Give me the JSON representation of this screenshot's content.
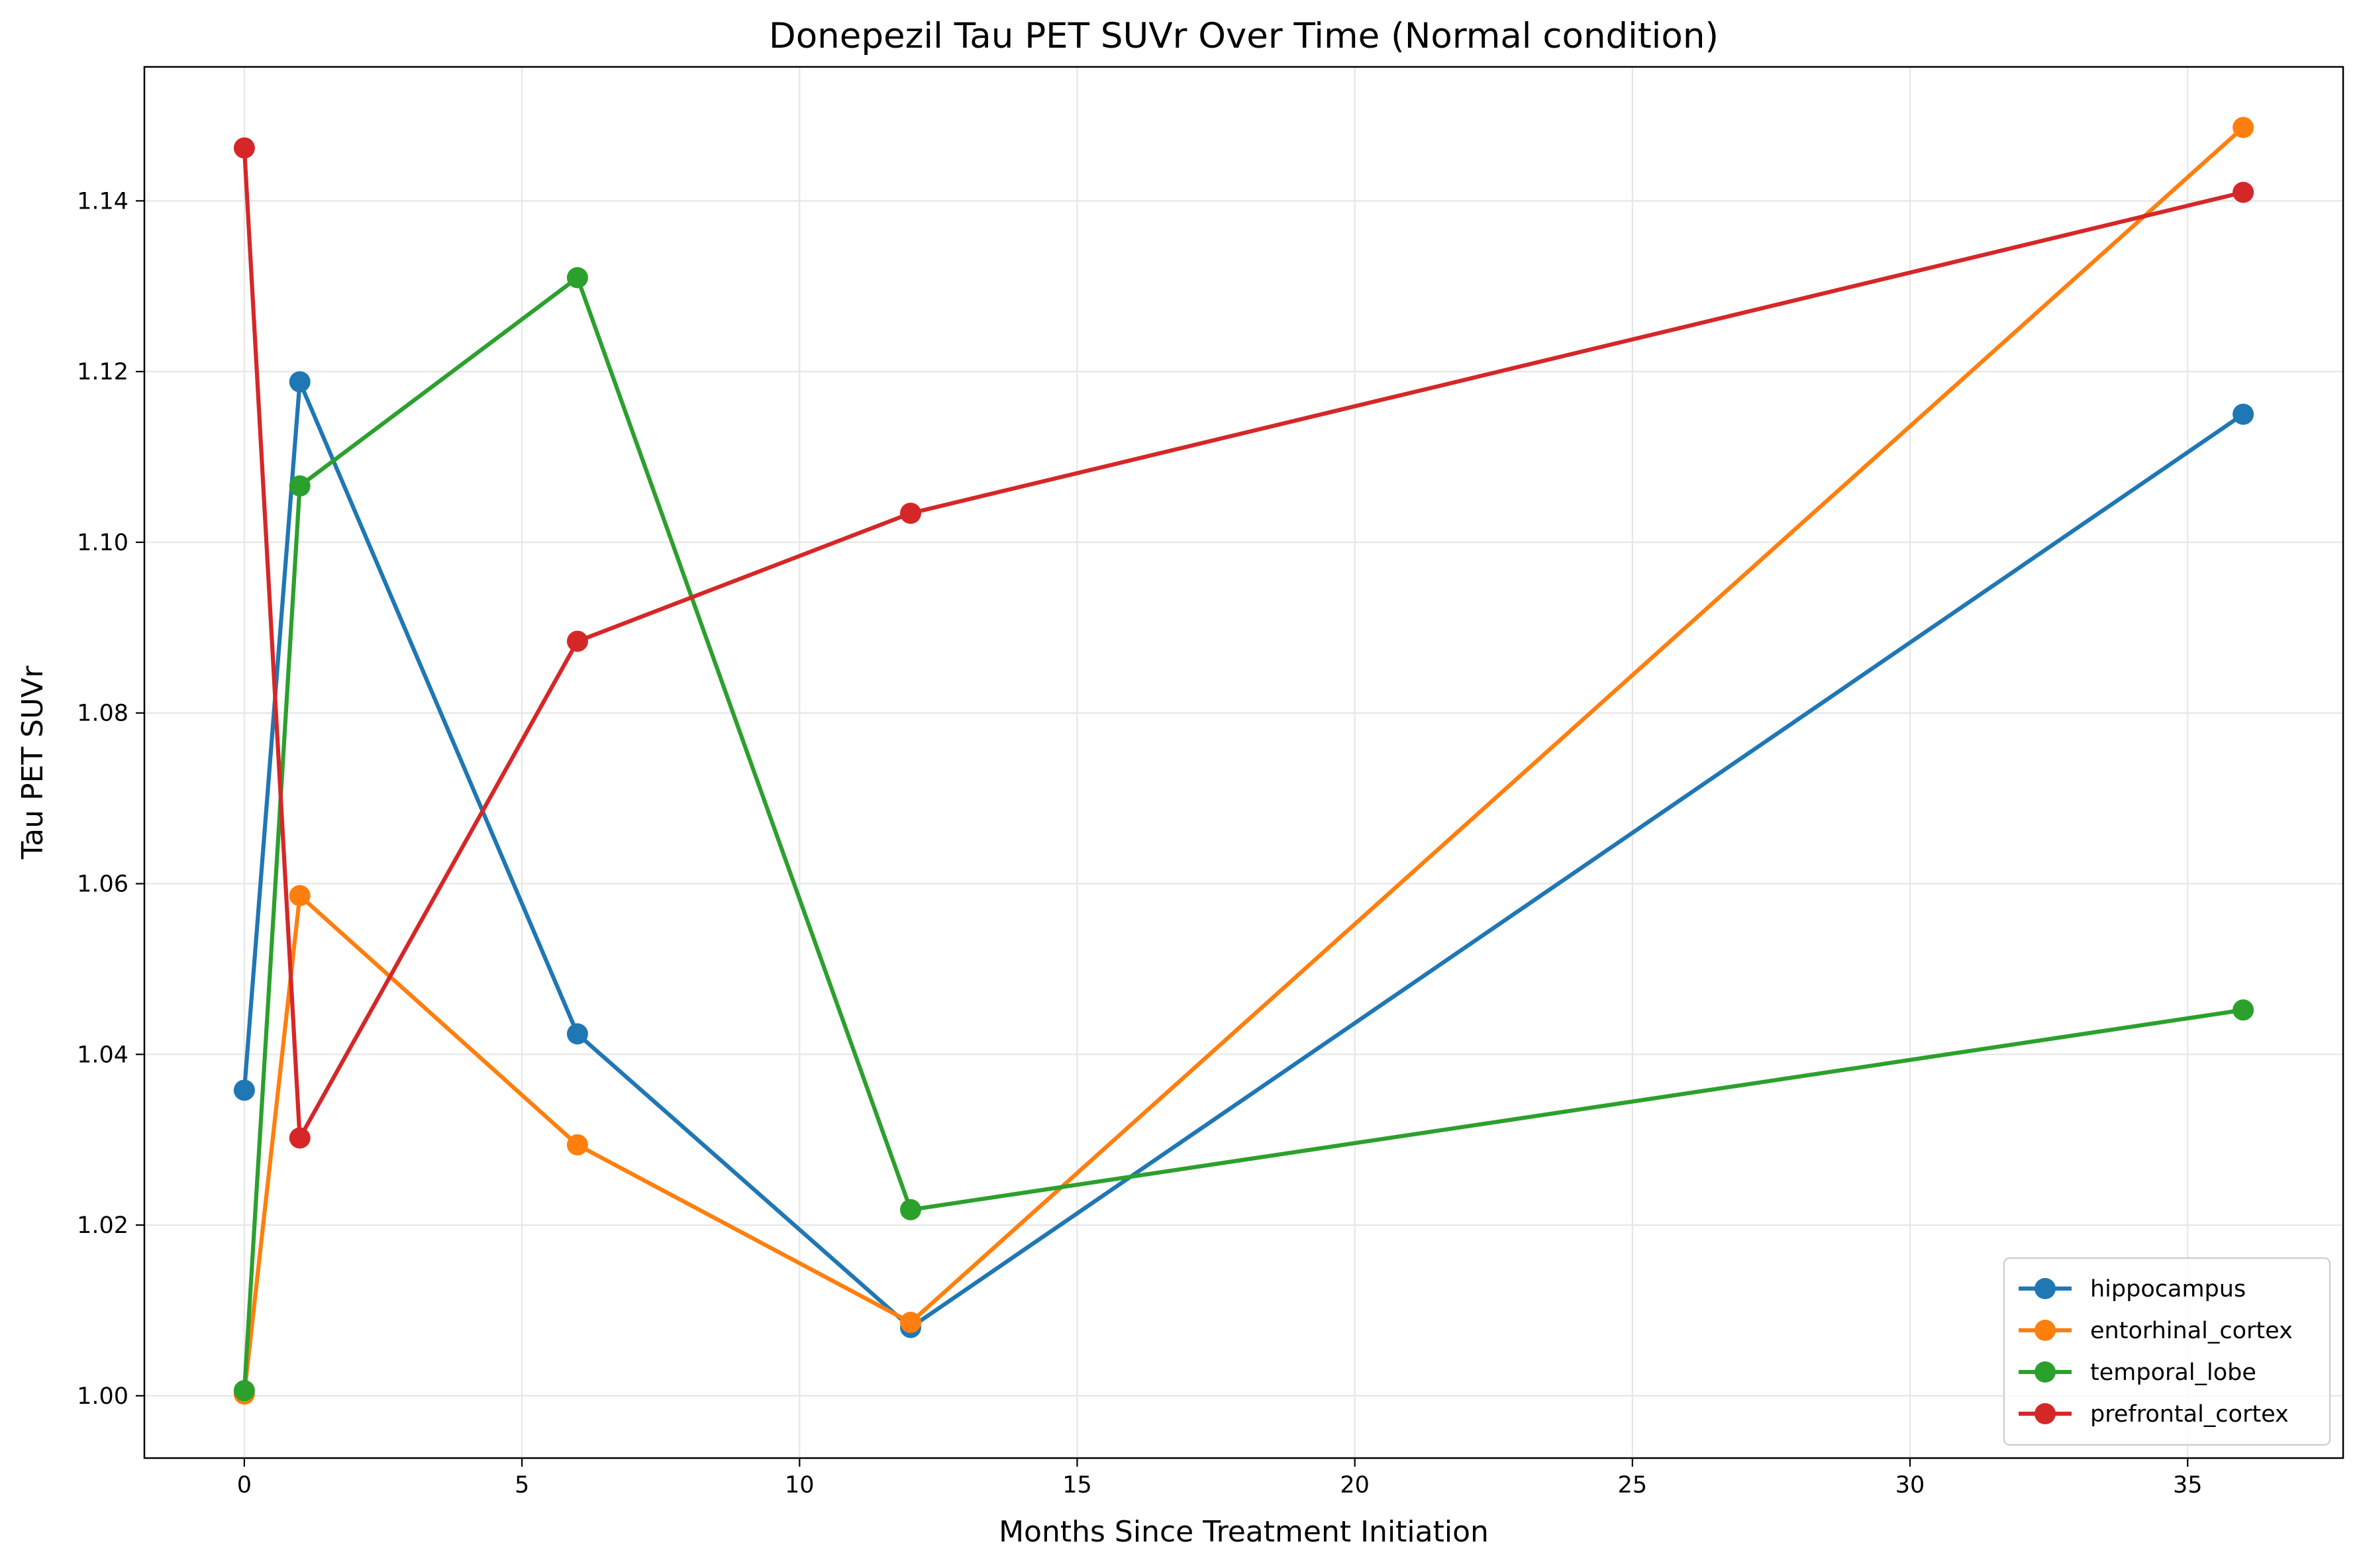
{
  "chart_data": {
    "type": "line",
    "title": "Donepezil Tau PET SUVr Over Time (Normal condition)",
    "xlabel": "Months Since Treatment Initiation",
    "ylabel": "Tau PET SUVr",
    "xlim": [
      -1.8,
      37.8
    ],
    "ylim": [
      0.9927,
      1.1557
    ],
    "xticks": [
      0,
      5,
      10,
      15,
      20,
      25,
      30,
      35
    ],
    "yticks": [
      1.0,
      1.02,
      1.04,
      1.06,
      1.08,
      1.1,
      1.12,
      1.14
    ],
    "x": [
      0,
      1,
      6,
      12,
      36
    ],
    "grid": true,
    "legend_position": "lower-right",
    "series": [
      {
        "name": "hippocampus",
        "color": "#1f77b4",
        "values": [
          1.0358,
          1.1188,
          1.0424,
          1.008,
          1.115
        ]
      },
      {
        "name": "entorhinal_cortex",
        "color": "#ff7f0e",
        "values": [
          1.0002,
          1.0586,
          1.0294,
          1.0086,
          1.1486
        ]
      },
      {
        "name": "temporal_lobe",
        "color": "#2ca02c",
        "values": [
          1.0006,
          1.1066,
          1.131,
          1.0218,
          1.0452
        ]
      },
      {
        "name": "prefrontal_cortex",
        "color": "#d62728",
        "values": [
          1.1462,
          1.0302,
          1.0884,
          1.1034,
          1.141
        ]
      }
    ]
  }
}
